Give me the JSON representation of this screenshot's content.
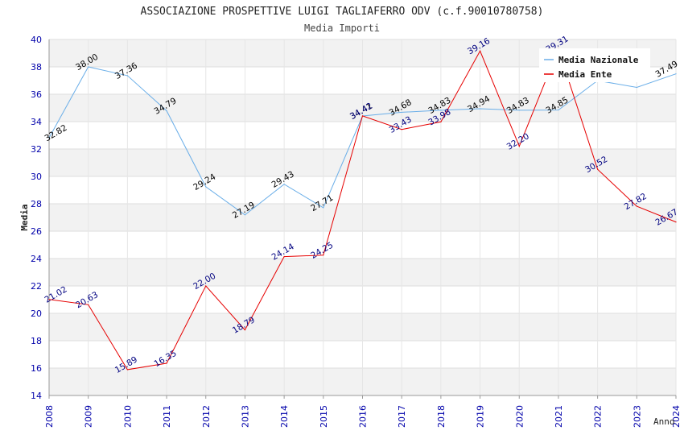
{
  "chart_data": {
    "type": "line",
    "title": "ASSOCIAZIONE PROSPETTIVE LUIGI TAGLIAFERRO ODV (c.f.90010780758)",
    "subtitle": "Media Importi",
    "xlabel": "Anno",
    "ylabel": "Media",
    "ylim": [
      14,
      40
    ],
    "yticks": [
      "14",
      "16",
      "18",
      "20",
      "22",
      "24",
      "26",
      "28",
      "30",
      "32",
      "34",
      "36",
      "38",
      "40"
    ],
    "categories": [
      "2008",
      "2009",
      "2010",
      "2011",
      "2012",
      "2013",
      "2014",
      "2015",
      "2016",
      "2017",
      "2018",
      "2019",
      "2020",
      "2021",
      "2022",
      "2023",
      "2024"
    ],
    "grid": true,
    "legend_position": "top-right",
    "series": [
      {
        "name": "Media Nazionale",
        "color": "#6aaee8",
        "label_color": "#000000",
        "values": [
          32.82,
          38.0,
          37.36,
          34.79,
          29.24,
          27.19,
          29.43,
          27.71,
          34.41,
          34.68,
          34.83,
          34.94,
          34.83,
          34.85,
          37.0,
          36.5,
          37.49
        ],
        "labels": [
          "32.82",
          "38.00",
          "37.36",
          "34.79",
          "29.24",
          "27.19",
          "29.43",
          "27.71",
          "34.41",
          "34.68",
          "34.83",
          "34.94",
          "34.83",
          "34.85",
          "",
          "",
          "37.49"
        ]
      },
      {
        "name": "Media Ente",
        "color": "#e60000",
        "label_color": "#000080",
        "values": [
          21.02,
          20.63,
          15.89,
          16.35,
          22.0,
          18.79,
          24.14,
          24.25,
          34.42,
          33.43,
          33.98,
          39.16,
          32.2,
          39.31,
          30.52,
          27.82,
          26.67
        ],
        "labels": [
          "21.02",
          "20.63",
          "15.89",
          "16.35",
          "22.00",
          "18.79",
          "24.14",
          "24.25",
          "34.42",
          "33.43",
          "33.98",
          "39.16",
          "32.20",
          "39.31",
          "30.52",
          "27.82",
          "26.67"
        ]
      }
    ]
  }
}
